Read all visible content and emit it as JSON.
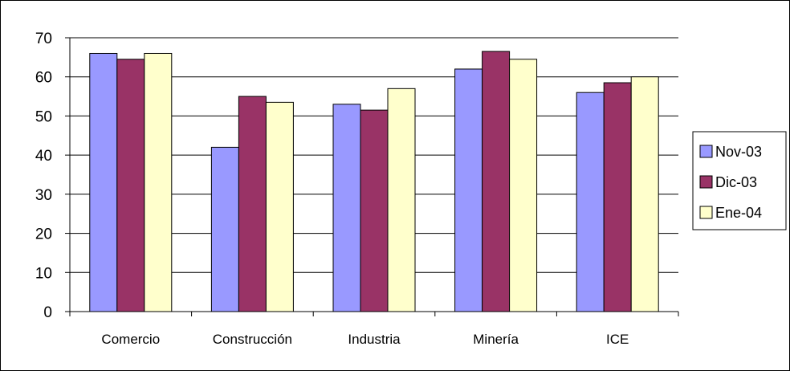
{
  "chart_data": {
    "type": "bar",
    "categories": [
      "Comercio",
      "Construcción",
      "Industria",
      "Minería",
      "ICE"
    ],
    "series": [
      {
        "name": "Nov-03",
        "color": "#9999ff",
        "values": [
          66,
          42,
          53,
          62,
          56
        ]
      },
      {
        "name": "Dic-03",
        "color": "#993366",
        "values": [
          64.5,
          55,
          51.5,
          66.5,
          58.5
        ]
      },
      {
        "name": "Ene-04",
        "color": "#ffffcc",
        "values": [
          66,
          53.5,
          57,
          64.5,
          60
        ]
      }
    ],
    "title": "",
    "xlabel": "",
    "ylabel": "",
    "ylim": [
      0,
      70
    ],
    "yticks": [
      0,
      10,
      20,
      30,
      40,
      50,
      60,
      70
    ],
    "grid": true,
    "legend_position": "right"
  }
}
